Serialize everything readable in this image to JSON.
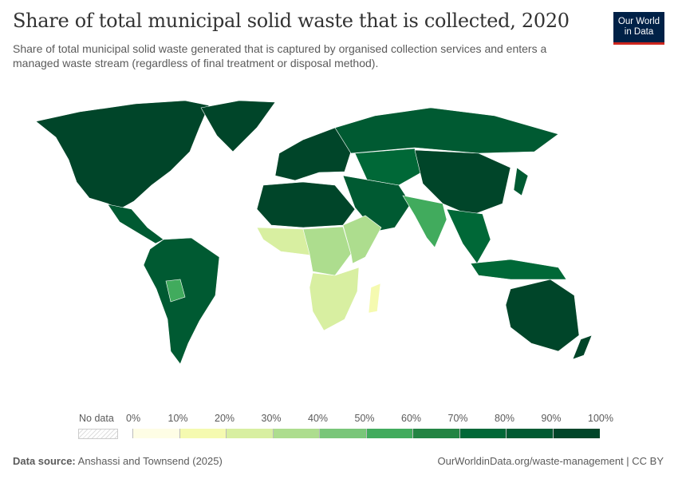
{
  "header": {
    "title": "Share of total municipal solid waste that is collected, 2020",
    "subtitle": "Share of total municipal solid waste generated that is captured by organised collection services and enters a managed waste stream (regardless of final treatment or disposal method).",
    "logo": "Our World in Data"
  },
  "legend": {
    "no_data_label": "No data",
    "ticks": [
      "0%",
      "10%",
      "20%",
      "30%",
      "40%",
      "50%",
      "60%",
      "70%",
      "80%",
      "90%",
      "100%"
    ],
    "colors": [
      "#fefde5",
      "#f5fab0",
      "#d8efa1",
      "#addd8e",
      "#79c679",
      "#41ab5d",
      "#238443",
      "#006837",
      "#005a32",
      "#004529"
    ]
  },
  "map": {
    "regions": [
      {
        "name": "North America",
        "bin": 9
      },
      {
        "name": "Greenland",
        "bin": 9
      },
      {
        "name": "Central America",
        "bin": 8
      },
      {
        "name": "South America",
        "bin": 8
      },
      {
        "name": "Bolivia",
        "bin": 5
      },
      {
        "name": "Europe",
        "bin": 9
      },
      {
        "name": "Russia",
        "bin": 8
      },
      {
        "name": "Central Asia",
        "bin": 7
      },
      {
        "name": "China",
        "bin": 9
      },
      {
        "name": "Middle East",
        "bin": 8
      },
      {
        "name": "South Asia",
        "bin": 5
      },
      {
        "name": "Southeast Asia",
        "bin": 7
      },
      {
        "name": "North Africa",
        "bin": 9
      },
      {
        "name": "West Africa",
        "bin": 2
      },
      {
        "name": "Central Africa",
        "bin": 3
      },
      {
        "name": "East Africa",
        "bin": 3
      },
      {
        "name": "Southern Africa",
        "bin": 2
      },
      {
        "name": "Madagascar",
        "bin": 1
      },
      {
        "name": "Australia",
        "bin": 9
      },
      {
        "name": "New Zealand",
        "bin": 9
      },
      {
        "name": "Indonesia",
        "bin": 7
      },
      {
        "name": "Japan",
        "bin": 8
      }
    ]
  },
  "footer": {
    "source_label": "Data source:",
    "source": "Anshassi and Townsend (2025)",
    "link": "OurWorldinData.org/waste-management | CC BY"
  }
}
